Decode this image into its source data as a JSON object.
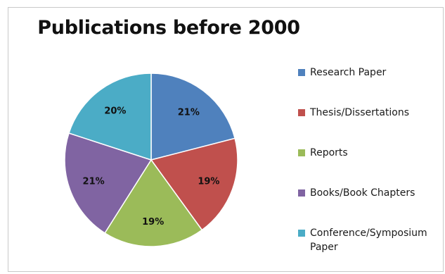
{
  "chart_data": {
    "type": "pie",
    "title": "Publications before 2000",
    "legend_position": "right",
    "slices": [
      {
        "label": "Research Paper",
        "value": 21,
        "display": "21%",
        "color": "#4f81bd"
      },
      {
        "label": "Thesis/Dissertations",
        "value": 19,
        "display": "19%",
        "color": "#c0504d"
      },
      {
        "label": "Reports",
        "value": 19,
        "display": "19%",
        "color": "#9bbb59"
      },
      {
        "label": "Books/Book Chapters",
        "value": 21,
        "display": "21%",
        "color": "#8064a2"
      },
      {
        "label": "Conference/Symposium Paper",
        "value": 20,
        "display": "20%",
        "color": "#4bacc6"
      }
    ]
  }
}
